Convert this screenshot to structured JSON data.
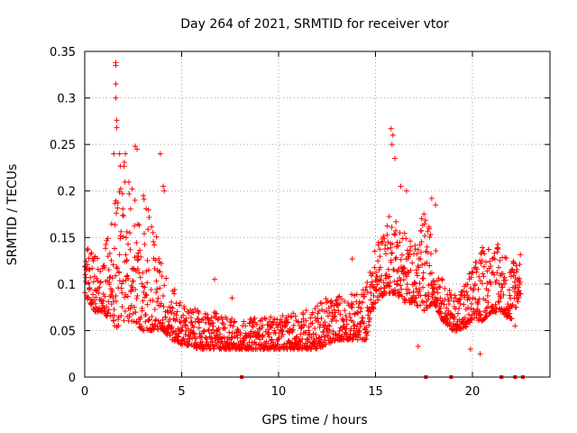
{
  "chart_data": {
    "type": "scatter",
    "title": "Day 264 of 2021, SRMTID for receiver vtor",
    "xlabel": "GPS time / hours",
    "ylabel": "SRMTID / TECUs",
    "xlim": [
      0,
      24
    ],
    "ylim": [
      0,
      0.35
    ],
    "xticks": [
      0,
      5,
      10,
      15,
      20
    ],
    "xtick_labels": [
      "0",
      "5",
      "10",
      "15",
      "20"
    ],
    "yticks": [
      0,
      0.05,
      0.1,
      0.15,
      0.2,
      0.25,
      0.3,
      0.35
    ],
    "ytick_labels": [
      "0",
      "0.05",
      "0.1",
      "0.15",
      "0.2",
      "0.25",
      "0.3",
      "0.35"
    ],
    "grid": true,
    "marker": "plus",
    "color": "#ff0000",
    "envelope": {
      "x": [
        0,
        0.5,
        1,
        1.5,
        2,
        2.5,
        3,
        3.5,
        4,
        4.5,
        5,
        6,
        7,
        8,
        9,
        10,
        11,
        12,
        13,
        14,
        14.5,
        15,
        15.5,
        16,
        16.5,
        17,
        17.5,
        18,
        18.5,
        19,
        19.5,
        20,
        20.5,
        21,
        21.5,
        22,
        22.5
      ],
      "low": [
        0.09,
        0.07,
        0.07,
        0.05,
        0.06,
        0.06,
        0.05,
        0.05,
        0.05,
        0.04,
        0.035,
        0.03,
        0.03,
        0.03,
        0.03,
        0.03,
        0.03,
        0.03,
        0.04,
        0.04,
        0.04,
        0.08,
        0.09,
        0.09,
        0.08,
        0.08,
        0.07,
        0.08,
        0.06,
        0.05,
        0.05,
        0.06,
        0.06,
        0.07,
        0.07,
        0.06,
        0.09
      ],
      "high": [
        0.15,
        0.14,
        0.13,
        0.2,
        0.24,
        0.2,
        0.21,
        0.18,
        0.12,
        0.1,
        0.08,
        0.07,
        0.07,
        0.06,
        0.065,
        0.065,
        0.07,
        0.08,
        0.09,
        0.09,
        0.1,
        0.14,
        0.17,
        0.18,
        0.16,
        0.14,
        0.18,
        0.15,
        0.1,
        0.09,
        0.1,
        0.12,
        0.14,
        0.15,
        0.14,
        0.13,
        0.14
      ]
    },
    "highlights": [
      {
        "x": 1.6,
        "y": 0.338
      },
      {
        "x": 1.6,
        "y": 0.335
      },
      {
        "x": 1.6,
        "y": 0.315
      },
      {
        "x": 1.6,
        "y": 0.3
      },
      {
        "x": 1.65,
        "y": 0.276
      },
      {
        "x": 1.65,
        "y": 0.268
      },
      {
        "x": 1.5,
        "y": 0.24
      },
      {
        "x": 1.8,
        "y": 0.24
      },
      {
        "x": 2.1,
        "y": 0.24
      },
      {
        "x": 2.6,
        "y": 0.248
      },
      {
        "x": 2.7,
        "y": 0.245
      },
      {
        "x": 3.9,
        "y": 0.24
      },
      {
        "x": 15.8,
        "y": 0.267
      },
      {
        "x": 15.9,
        "y": 0.26
      },
      {
        "x": 15.85,
        "y": 0.25
      },
      {
        "x": 16.0,
        "y": 0.235
      },
      {
        "x": 16.3,
        "y": 0.205
      },
      {
        "x": 16.6,
        "y": 0.2
      },
      {
        "x": 17.9,
        "y": 0.192
      },
      {
        "x": 18.1,
        "y": 0.185
      },
      {
        "x": 20.4,
        "y": 0.025
      },
      {
        "x": 13.8,
        "y": 0.127
      },
      {
        "x": 6.7,
        "y": 0.105
      },
      {
        "x": 7.6,
        "y": 0.085
      },
      {
        "x": 4.1,
        "y": 0.2
      },
      {
        "x": 4.05,
        "y": 0.205
      },
      {
        "x": 17.2,
        "y": 0.033
      },
      {
        "x": 19.9,
        "y": 0.03
      },
      {
        "x": 22.2,
        "y": 0.055
      }
    ],
    "zero_markers": [
      8.1,
      17.6,
      18.9,
      21.5,
      22.2,
      22.6
    ]
  }
}
